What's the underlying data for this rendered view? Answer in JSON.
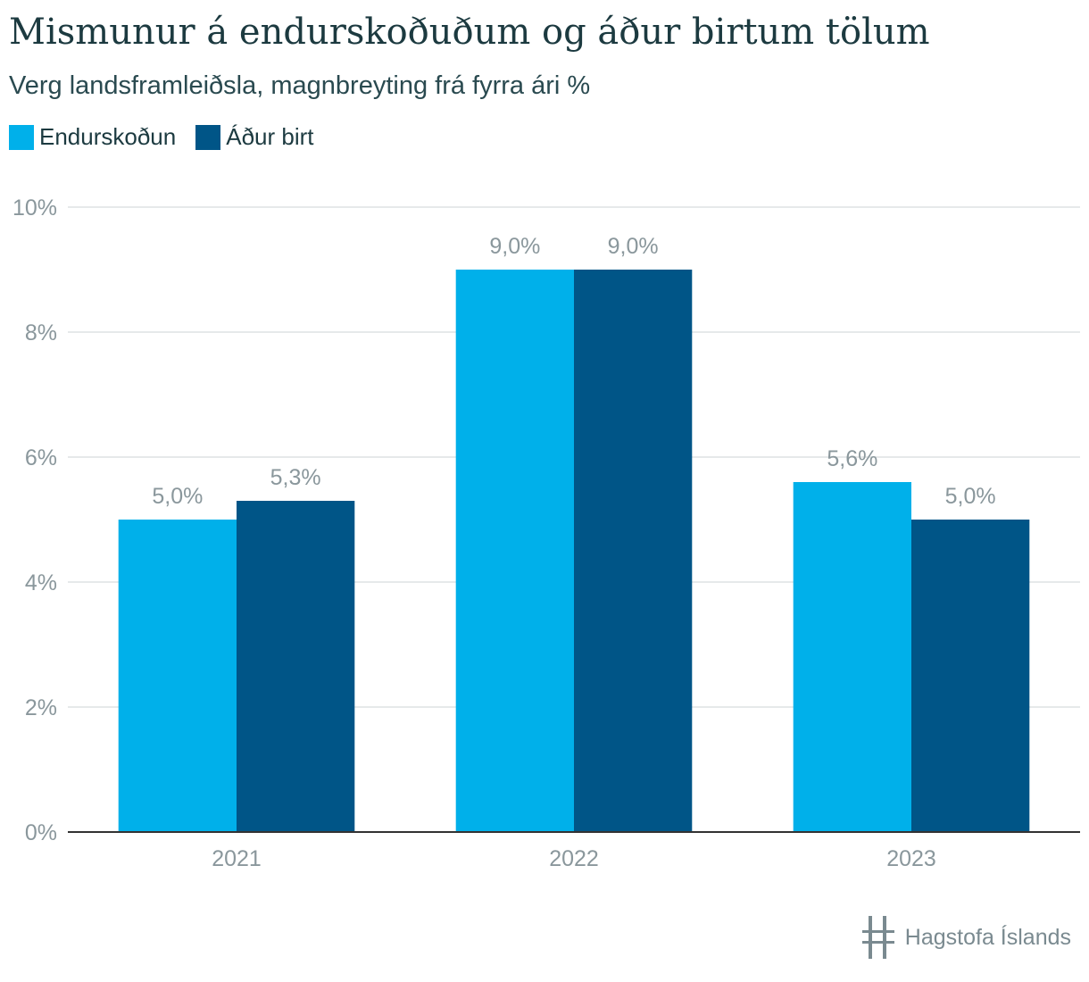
{
  "title": "Mismunur á endurskoðuðum og áður birtum tölum",
  "subtitle": "Verg landsframleiðsla, magnbreyting frá fyrra ári %",
  "legend": [
    {
      "label": "Endurskoðun",
      "color": "#00b0ea"
    },
    {
      "label": "Áður birt",
      "color": "#005587"
    }
  ],
  "logo": {
    "text": "Hagstofa Íslands",
    "icon": "hagstofa-logo-icon"
  },
  "chart_data": {
    "type": "bar",
    "categories": [
      "2021",
      "2022",
      "2023"
    ],
    "series": [
      {
        "name": "Endurskoðun",
        "values": [
          5.0,
          9.0,
          5.6
        ],
        "labels": [
          "5,0%",
          "9,0%",
          "5,6%"
        ]
      },
      {
        "name": "Áður birt",
        "values": [
          5.3,
          9.0,
          5.0
        ],
        "labels": [
          "5,3%",
          "9,0%",
          "5,0%"
        ]
      }
    ],
    "ylim": [
      0,
      10
    ],
    "yticks": [
      0,
      2,
      4,
      6,
      8,
      10
    ],
    "ytick_labels": [
      "0%",
      "2%",
      "4%",
      "6%",
      "8%",
      "10%"
    ],
    "grid": true,
    "legend_position": "top-left"
  }
}
